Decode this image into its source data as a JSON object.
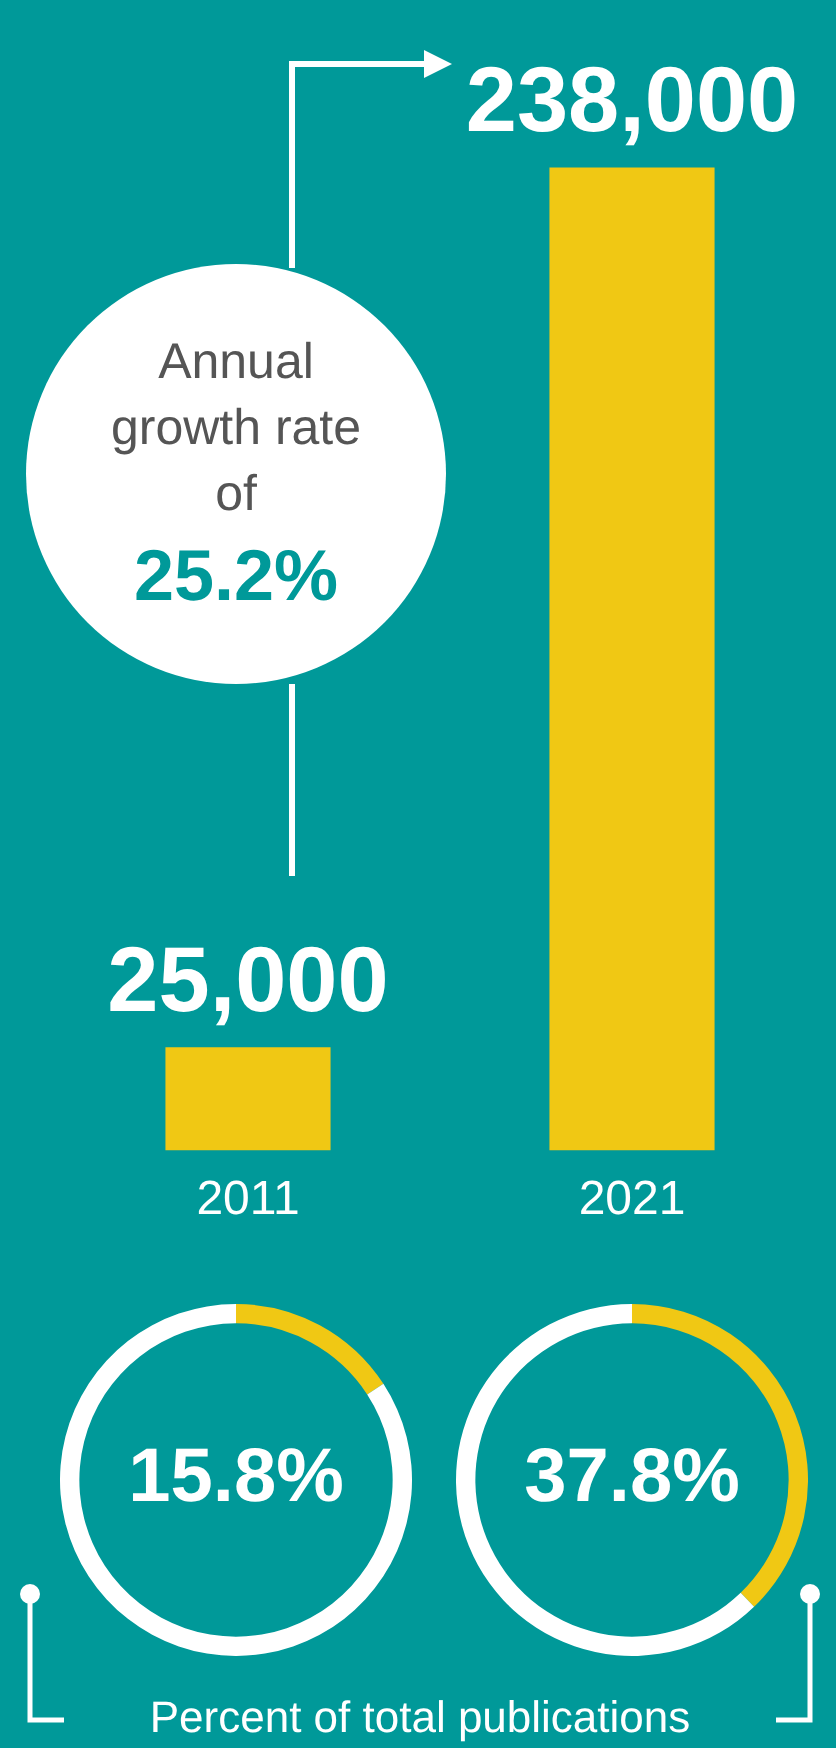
{
  "chart_data": [
    {
      "type": "bar",
      "categories": [
        "2011",
        "2021"
      ],
      "values": [
        25000,
        238000
      ],
      "color": "#f0c814",
      "value_labels": [
        "25,000",
        "238,000"
      ],
      "annotations": [
        "Annual growth rate of 25.2%"
      ]
    },
    {
      "type": "donut",
      "categories": [
        null,
        null
      ],
      "values": [
        15.8,
        84.2
      ],
      "colors": [
        "#f0c814",
        "#ffffff"
      ],
      "value_labels": [
        "15.8%",
        null
      ],
      "annotations": [
        "Percent of total publications"
      ]
    },
    {
      "type": "donut",
      "categories": [
        null,
        null
      ],
      "values": [
        37.8,
        62.2
      ],
      "colors": [
        "#f0c814",
        "#ffffff"
      ],
      "value_labels": [
        "37.8%",
        null
      ]
    }
  ]
}
